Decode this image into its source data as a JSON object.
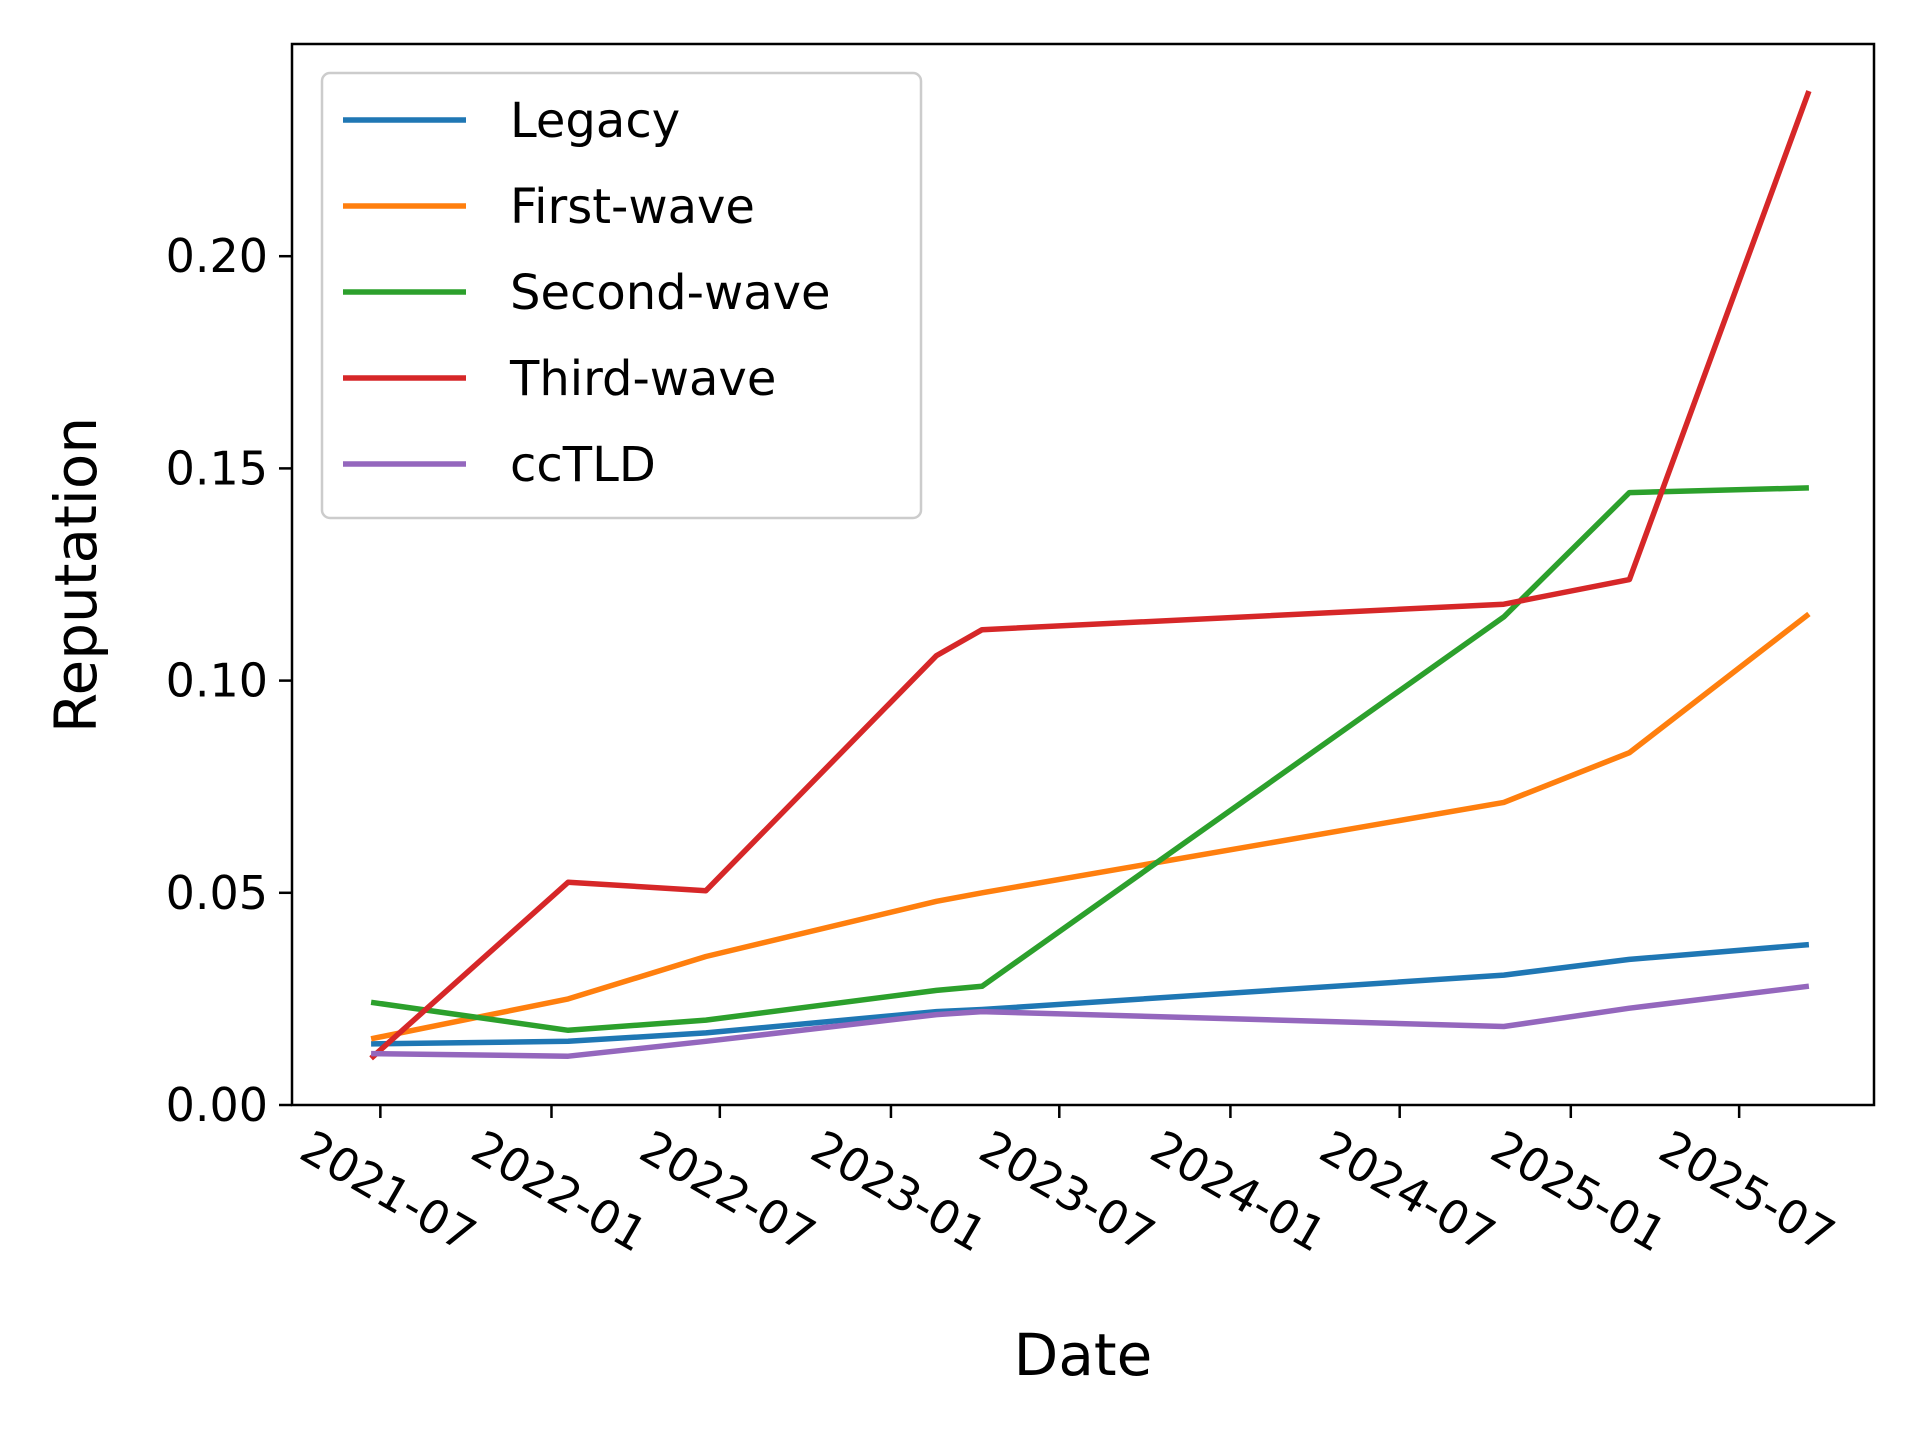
{
  "chart_data": {
    "type": "line",
    "title": "",
    "xlabel": "Date",
    "ylabel": "Reputation",
    "ylim": [
      0,
      0.25
    ],
    "xlim": [
      "2021-03-28",
      "2025-11-23"
    ],
    "x_tick_labels": [
      "2021-07",
      "2022-01",
      "2022-07",
      "2023-01",
      "2023-07",
      "2024-01",
      "2024-07",
      "2025-01",
      "2025-07"
    ],
    "y_tick_labels": [
      "0.00",
      "0.05",
      "0.10",
      "0.15",
      "0.20"
    ],
    "y_ticks": [
      0,
      0.05,
      0.1,
      0.15,
      0.2
    ],
    "grid": false,
    "legend_position": "top-left",
    "x": [
      "2021-06-21",
      "2022-01-19",
      "2022-06-16",
      "2023-02-19",
      "2023-04-09",
      "2024-10-21",
      "2025-03-05",
      "2025-09-14"
    ],
    "series": [
      {
        "name": "Legacy",
        "color": "#1f77b4",
        "values": [
          0.0144,
          0.015,
          0.017,
          0.022,
          0.0225,
          0.0306,
          0.0343,
          0.0378
        ]
      },
      {
        "name": "First-wave",
        "color": "#ff7f0e",
        "values": [
          0.0156,
          0.025,
          0.035,
          0.048,
          0.05,
          0.0713,
          0.083,
          0.1157
        ]
      },
      {
        "name": "Second-wave",
        "color": "#2ca02c",
        "values": [
          0.0242,
          0.0176,
          0.02,
          0.027,
          0.028,
          0.115,
          0.1443,
          0.1454
        ]
      },
      {
        "name": "Third-wave",
        "color": "#d62728",
        "values": [
          0.011,
          0.0525,
          0.0505,
          0.1059,
          0.112,
          0.118,
          0.1238,
          0.2389
        ]
      },
      {
        "name": "ccTLD",
        "color": "#9467bd",
        "values": [
          0.0121,
          0.0115,
          0.015,
          0.0213,
          0.022,
          0.0185,
          0.0228,
          0.028
        ]
      }
    ]
  }
}
